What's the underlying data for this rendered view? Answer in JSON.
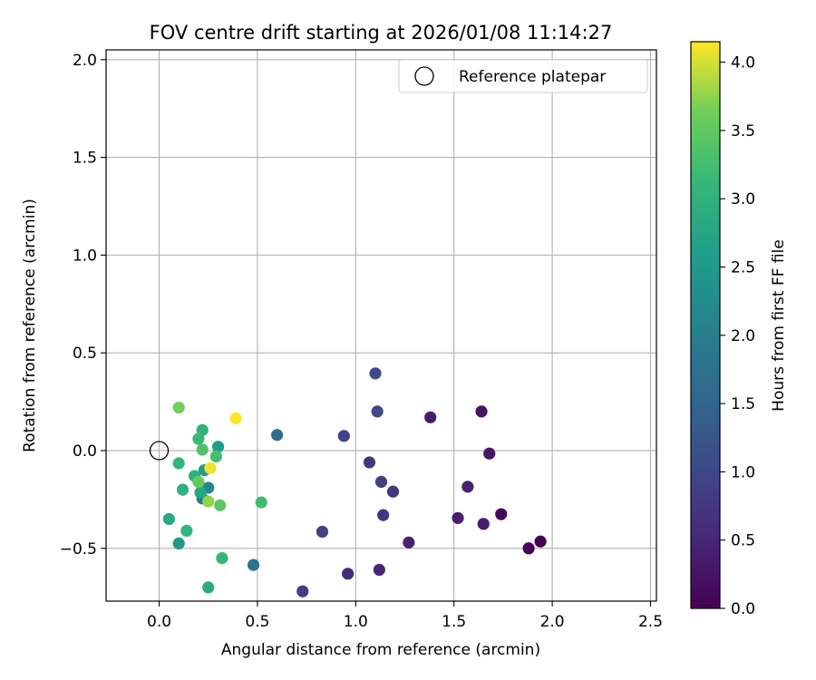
{
  "chart_data": {
    "type": "scatter",
    "title": "FOV centre drift starting at 2026/01/08 11:14:27",
    "xlabel": "Angular distance from reference (arcmin)",
    "ylabel": "Rotation from reference (arcmin)",
    "xlim": [
      -0.27,
      2.53
    ],
    "ylim": [
      -0.77,
      2.05
    ],
    "xticks": [
      0.0,
      0.5,
      1.0,
      1.5,
      2.0,
      2.5
    ],
    "xtick_labels": [
      "0.0",
      "0.5",
      "1.0",
      "1.5",
      "2.0",
      "2.5"
    ],
    "yticks": [
      -0.5,
      0.0,
      0.5,
      1.0,
      1.5,
      2.0
    ],
    "ytick_labels": [
      "−0.5",
      "0.0",
      "0.5",
      "1.0",
      "1.5",
      "2.0"
    ],
    "grid": true,
    "legend": {
      "position": "top-right",
      "entries": [
        "Reference platepar"
      ]
    },
    "reference_point": {
      "x": 0.0,
      "y": 0.0,
      "label": "Reference platepar"
    },
    "colorbar": {
      "label": "Hours from first FF file",
      "colormap": "viridis",
      "min": 0.0,
      "max": 4.15,
      "ticks": [
        0.0,
        0.5,
        1.0,
        1.5,
        2.0,
        2.5,
        3.0,
        3.5,
        4.0
      ],
      "tick_labels": [
        "0.0",
        "0.5",
        "1.0",
        "1.5",
        "2.0",
        "2.5",
        "3.0",
        "3.5",
        "4.0"
      ]
    },
    "points": [
      {
        "x": 1.94,
        "y": -0.465,
        "c": 0.0
      },
      {
        "x": 1.88,
        "y": -0.5,
        "c": 0.05
      },
      {
        "x": 1.74,
        "y": -0.325,
        "c": 0.1
      },
      {
        "x": 1.64,
        "y": 0.2,
        "c": 0.25
      },
      {
        "x": 1.68,
        "y": -0.015,
        "c": 0.3
      },
      {
        "x": 1.65,
        "y": -0.375,
        "c": 0.35
      },
      {
        "x": 1.52,
        "y": -0.345,
        "c": 0.4
      },
      {
        "x": 1.57,
        "y": -0.185,
        "c": 0.45
      },
      {
        "x": 1.38,
        "y": 0.17,
        "c": 0.35
      },
      {
        "x": 1.27,
        "y": -0.47,
        "c": 0.45
      },
      {
        "x": 1.12,
        "y": -0.61,
        "c": 0.5
      },
      {
        "x": 0.96,
        "y": -0.63,
        "c": 0.6
      },
      {
        "x": 1.19,
        "y": -0.21,
        "c": 0.75
      },
      {
        "x": 1.14,
        "y": -0.33,
        "c": 0.75
      },
      {
        "x": 1.07,
        "y": -0.06,
        "c": 0.75
      },
      {
        "x": 1.13,
        "y": -0.16,
        "c": 0.85
      },
      {
        "x": 0.73,
        "y": -0.72,
        "c": 0.85
      },
      {
        "x": 0.83,
        "y": -0.415,
        "c": 0.9
      },
      {
        "x": 0.94,
        "y": 0.075,
        "c": 0.95
      },
      {
        "x": 1.11,
        "y": 0.2,
        "c": 1.0
      },
      {
        "x": 1.1,
        "y": 0.395,
        "c": 1.05
      },
      {
        "x": 0.6,
        "y": 0.08,
        "c": 1.7
      },
      {
        "x": 0.48,
        "y": -0.585,
        "c": 1.75
      },
      {
        "x": 0.22,
        "y": -0.245,
        "c": 1.9
      },
      {
        "x": 0.25,
        "y": -0.19,
        "c": 2.2
      },
      {
        "x": 0.1,
        "y": -0.475,
        "c": 2.5
      },
      {
        "x": 0.05,
        "y": -0.35,
        "c": 2.8
      },
      {
        "x": 0.3,
        "y": 0.02,
        "c": 2.6
      },
      {
        "x": 0.23,
        "y": -0.1,
        "c": 2.6
      },
      {
        "x": 0.21,
        "y": -0.215,
        "c": 2.75
      },
      {
        "x": 0.25,
        "y": -0.7,
        "c": 2.9
      },
      {
        "x": 0.18,
        "y": -0.13,
        "c": 3.0
      },
      {
        "x": 0.12,
        "y": -0.2,
        "c": 3.0
      },
      {
        "x": 0.14,
        "y": -0.41,
        "c": 3.05
      },
      {
        "x": 0.22,
        "y": 0.105,
        "c": 3.05
      },
      {
        "x": 0.2,
        "y": 0.06,
        "c": 3.15
      },
      {
        "x": 0.1,
        "y": -0.065,
        "c": 3.1
      },
      {
        "x": 0.32,
        "y": -0.55,
        "c": 3.1
      },
      {
        "x": 0.29,
        "y": -0.03,
        "c": 3.25
      },
      {
        "x": 0.52,
        "y": -0.265,
        "c": 3.2
      },
      {
        "x": 0.22,
        "y": 0.005,
        "c": 3.35
      },
      {
        "x": 0.31,
        "y": -0.28,
        "c": 3.45
      },
      {
        "x": 0.2,
        "y": -0.16,
        "c": 3.55
      },
      {
        "x": 0.1,
        "y": 0.22,
        "c": 3.65
      },
      {
        "x": 0.25,
        "y": -0.26,
        "c": 3.75
      },
      {
        "x": 0.26,
        "y": -0.09,
        "c": 4.1
      },
      {
        "x": 0.39,
        "y": 0.165,
        "c": 4.15
      }
    ]
  }
}
